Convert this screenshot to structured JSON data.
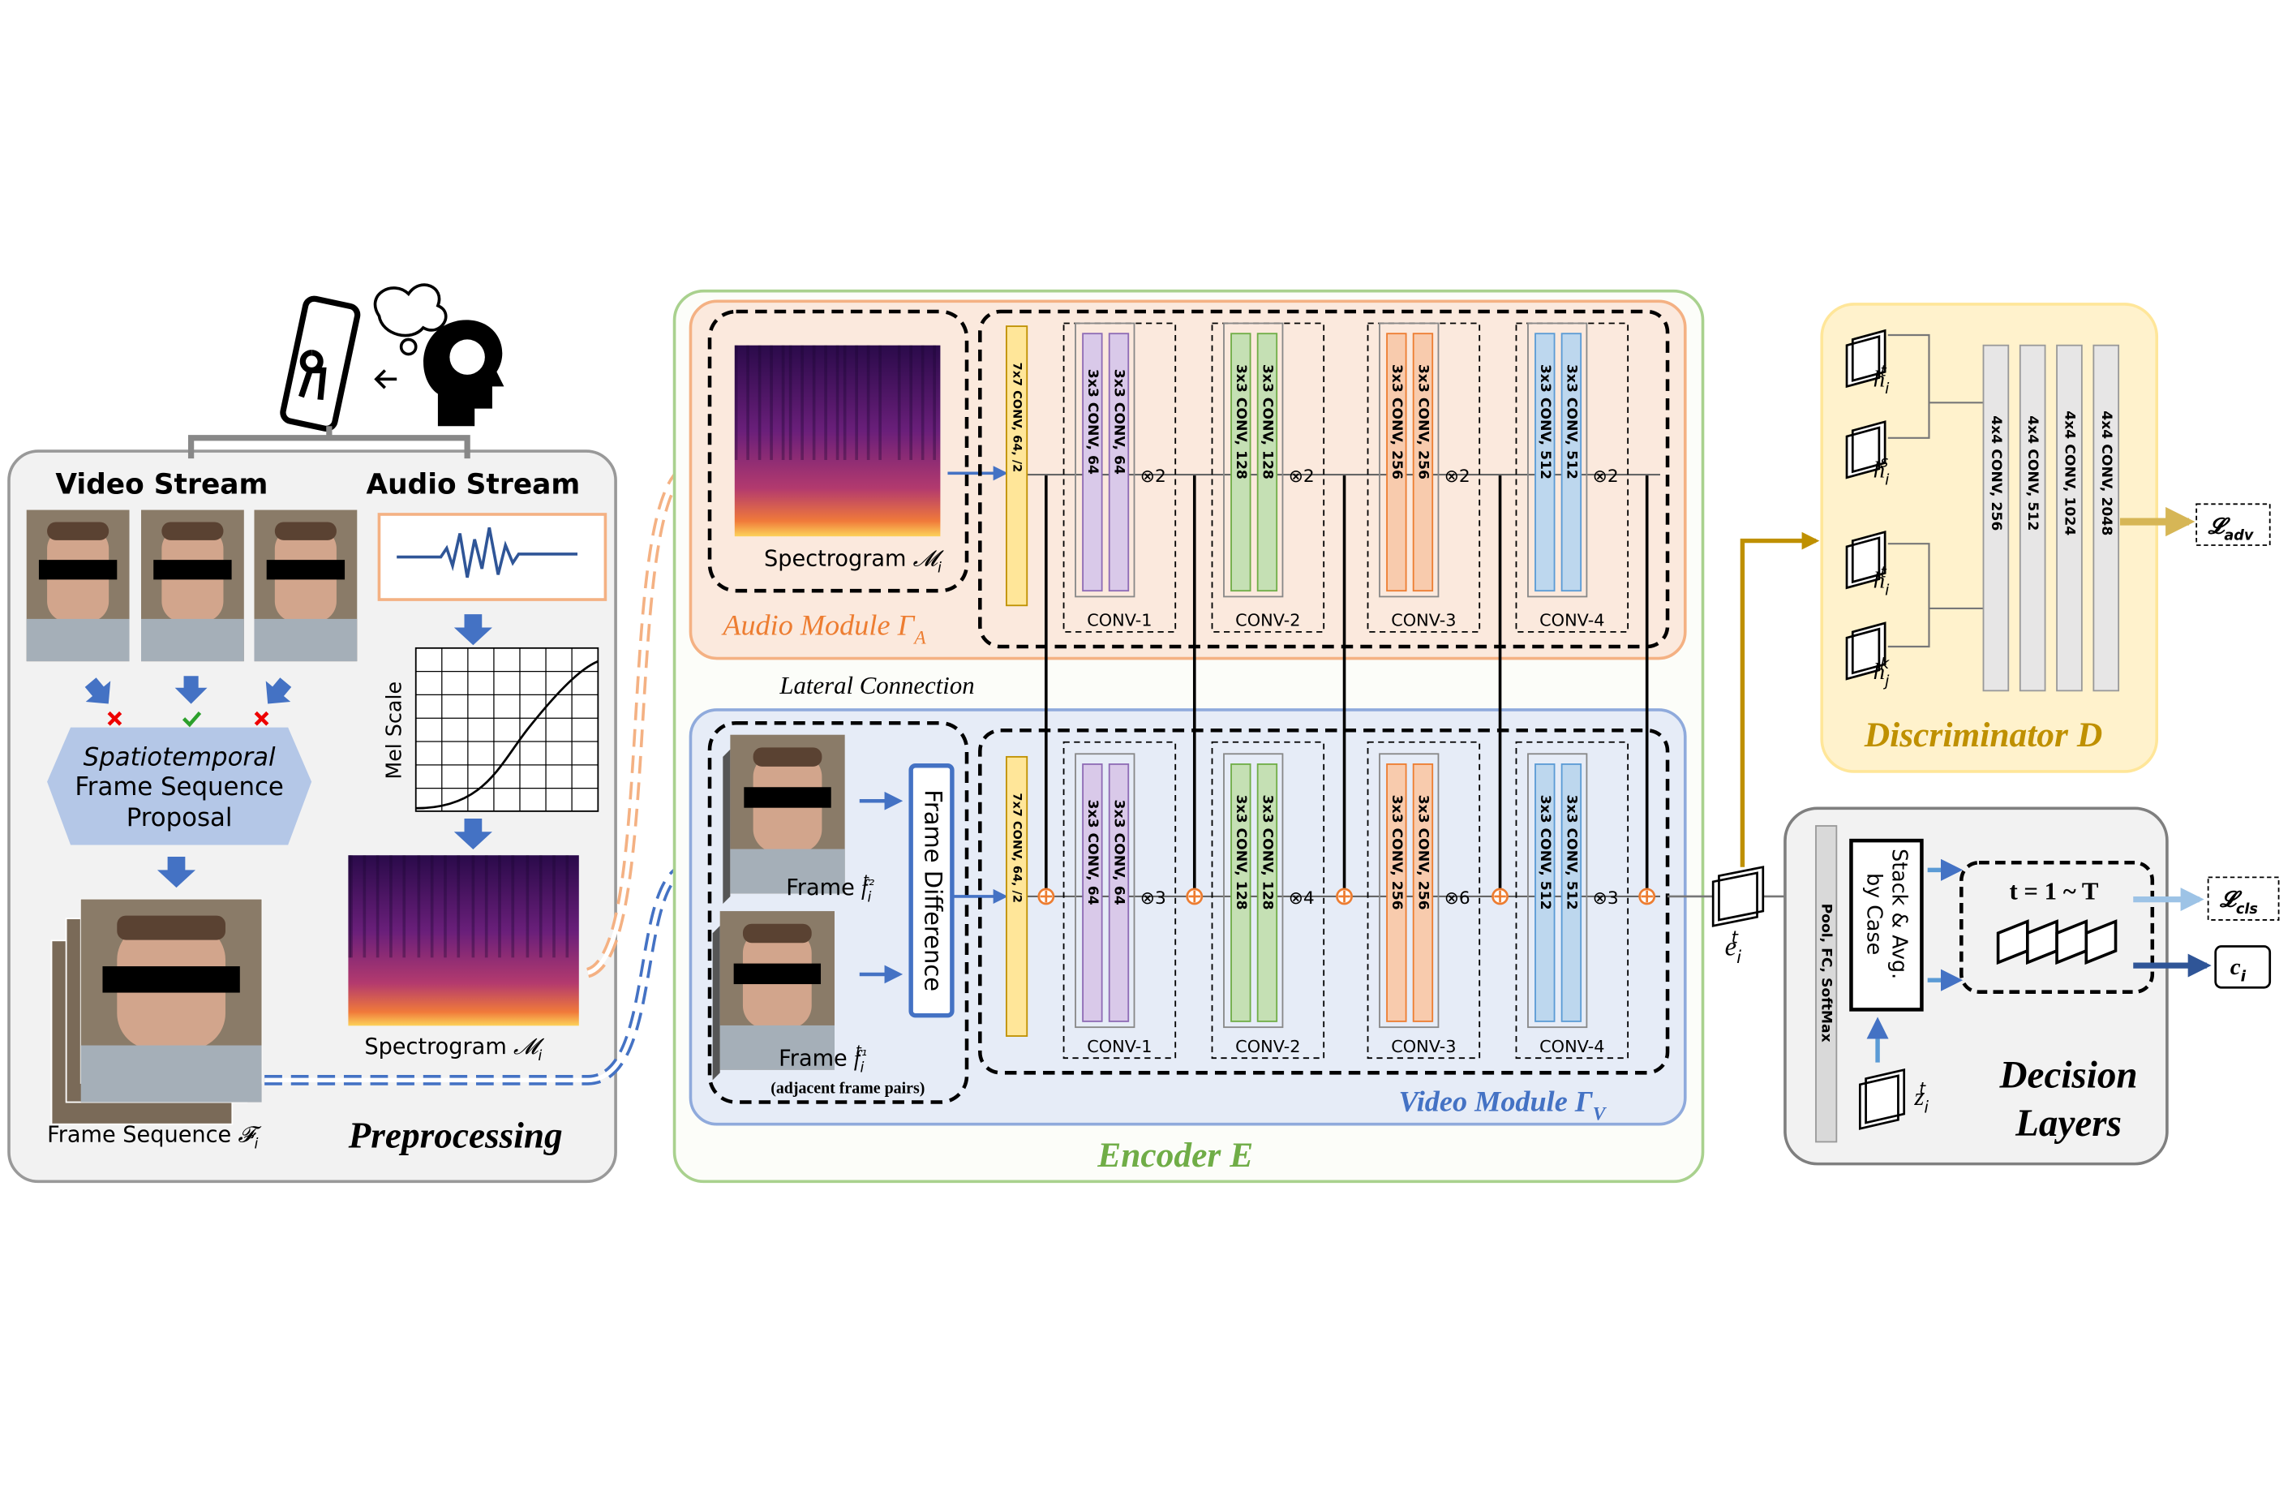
{
  "preprocessing": {
    "title": "Preprocessing",
    "video_stream": "Video Stream",
    "audio_stream": "Audio Stream",
    "proposal": {
      "line1": "Spatiotemporal",
      "line2": "Frame Sequence",
      "line3": "Proposal"
    },
    "mel_scale": "Mel Scale",
    "spectrogram": {
      "text": "Spectrogram",
      "symbol": "𝓜",
      "sub": "i"
    },
    "frame_sequence": {
      "text": "Frame Sequence",
      "symbol": "𝓕",
      "sub": "i"
    }
  },
  "encoder": {
    "title": "Encoder E",
    "lateral_connection": "Lateral Connection",
    "audio_module": {
      "label": {
        "text": "Audio Module Γ",
        "sub": "A"
      },
      "spectrogram": {
        "text": "Spectrogram",
        "symbol": "𝓜",
        "sub": "i"
      },
      "stem": "7x7 CONV, 64, /2",
      "blocks": [
        {
          "name": "CONV-1",
          "layers": [
            "3x3 CONV, 64",
            "3x3 CONV, 64"
          ],
          "repeat": "⊗2"
        },
        {
          "name": "CONV-2",
          "layers": [
            "3x3 CONV, 128",
            "3x3 CONV, 128"
          ],
          "repeat": "⊗2"
        },
        {
          "name": "CONV-3",
          "layers": [
            "3x3 CONV, 256",
            "3x3 CONV, 256"
          ],
          "repeat": "⊗2"
        },
        {
          "name": "CONV-4",
          "layers": [
            "3x3 CONV, 512",
            "3x3 CONV, 512"
          ],
          "repeat": "⊗2"
        }
      ]
    },
    "video_module": {
      "label": {
        "text": "Video Module Γ",
        "sub": "V"
      },
      "frame_t2": {
        "text": "Frame",
        "symbol": "f",
        "sub": "i",
        "sup": "t₂"
      },
      "frame_t1": {
        "text": "Frame",
        "symbol": "f",
        "sub": "i",
        "sup": "t₁"
      },
      "pairs": "(adjacent frame pairs)",
      "frame_difference": "Frame Difference",
      "stem": "7x7 CONV, 64, /2",
      "blocks": [
        {
          "name": "CONV-1",
          "layers": [
            "3x3 CONV, 64",
            "3x3 CONV, 64"
          ],
          "repeat": "⊗3"
        },
        {
          "name": "CONV-2",
          "layers": [
            "3x3 CONV, 128",
            "3x3 CONV, 128"
          ],
          "repeat": "⊗4"
        },
        {
          "name": "CONV-3",
          "layers": [
            "3x3 CONV, 256",
            "3x3 CONV, 256"
          ],
          "repeat": "⊗6"
        },
        {
          "name": "CONV-4",
          "layers": [
            "3x3 CONV, 512",
            "3x3 CONV, 512"
          ],
          "repeat": "⊗3"
        }
      ]
    },
    "embedding": {
      "symbol": "e",
      "sub": "i",
      "sup": "t"
    }
  },
  "discriminator": {
    "title": "Discriminator D",
    "inputs": [
      {
        "symbol": "h",
        "sub": "i",
        "sup": "t"
      },
      {
        "symbol": "h",
        "sub": "i",
        "sup": "s"
      },
      {
        "symbol": "h",
        "sub": "i",
        "sup": "t"
      },
      {
        "symbol": "h",
        "sub": "j",
        "sup": "k"
      }
    ],
    "layers": [
      "4x4 CONV, 256",
      "4x4 CONV, 512",
      "4x4 CONV, 1024",
      "4x4 CONV, 2048"
    ],
    "loss": {
      "symbol": "𝓛",
      "sub": "adv"
    }
  },
  "decision": {
    "title_line1": "Decision",
    "title_line2": "Layers",
    "pool": "Pool, FC, SoftMax",
    "stack": {
      "line1": "Stack & Avg.",
      "line2": "by Case"
    },
    "time_range": "t = 1 ~ T",
    "input": {
      "symbol": "z",
      "sub": "i",
      "sup": "t"
    },
    "loss": {
      "symbol": "𝓛",
      "sub": "cls"
    },
    "output": {
      "symbol": "c",
      "sub": "i"
    }
  }
}
